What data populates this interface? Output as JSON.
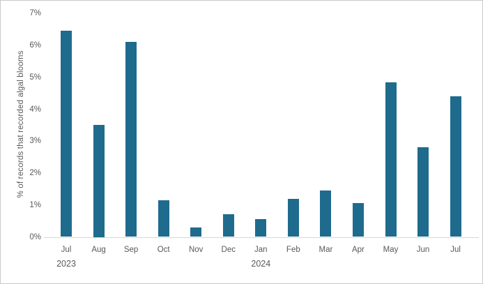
{
  "chart_data": {
    "type": "bar",
    "title": "",
    "xlabel": "",
    "ylabel": "% of records that recorded algal blooms",
    "categories": [
      "Jul",
      "Aug",
      "Sep",
      "Oct",
      "Nov",
      "Dec",
      "Jan",
      "Feb",
      "Mar",
      "Apr",
      "May",
      "Jun",
      "Jul"
    ],
    "values": [
      6.45,
      3.5,
      6.1,
      1.15,
      0.3,
      0.7,
      0.55,
      1.2,
      1.45,
      1.05,
      4.85,
      2.8,
      4.4
    ],
    "year_labels": [
      {
        "text": "2023",
        "category_index": 0
      },
      {
        "text": "2024",
        "category_index": 6
      }
    ],
    "ytick_labels": [
      "0%",
      "1%",
      "2%",
      "3%",
      "4%",
      "5%",
      "6%",
      "7%"
    ],
    "ylim": [
      0,
      7
    ],
    "grid": false,
    "legend": false,
    "colors": {
      "bar": "#1F6B8D",
      "axis_text": "#595959",
      "axis_line": "#D8D8D8",
      "background": "#FFFFFF",
      "border": "#C9C9C9"
    }
  }
}
